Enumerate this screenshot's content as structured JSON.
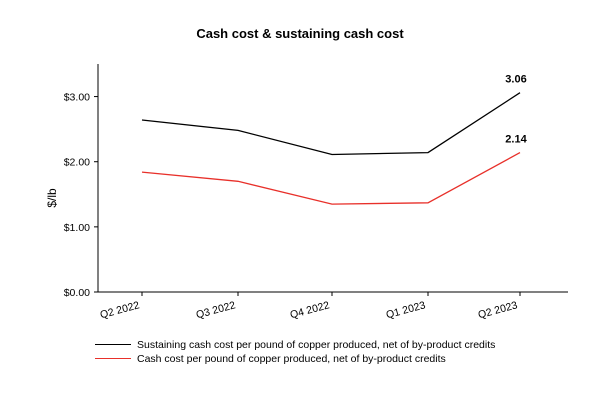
{
  "chart_data": {
    "type": "line",
    "title": "Cash cost & sustaining cash cost",
    "ylabel": "$/lb",
    "xlabel": "",
    "categories": [
      "Q2 2022",
      "Q3 2022",
      "Q4 2022",
      "Q1 2023",
      "Q2 2023"
    ],
    "ylim": [
      0,
      3.5
    ],
    "yticks": [
      0,
      1,
      2,
      3
    ],
    "ytick_labels": [
      "$0.00",
      "$1.00",
      "$2.00",
      "$3.00"
    ],
    "grid": false,
    "legend_position": "bottom",
    "series": [
      {
        "name": "Sustaining cash cost per pound of copper produced, net of by-product credits",
        "color": "#000000",
        "values": [
          2.64,
          2.48,
          2.11,
          2.14,
          3.06
        ],
        "end_label": "3.06"
      },
      {
        "name": "Cash cost per pound of copper produced, net of by-product credits",
        "color": "#e8302a",
        "values": [
          1.84,
          1.7,
          1.35,
          1.37,
          2.14
        ],
        "end_label": "2.14"
      }
    ]
  }
}
